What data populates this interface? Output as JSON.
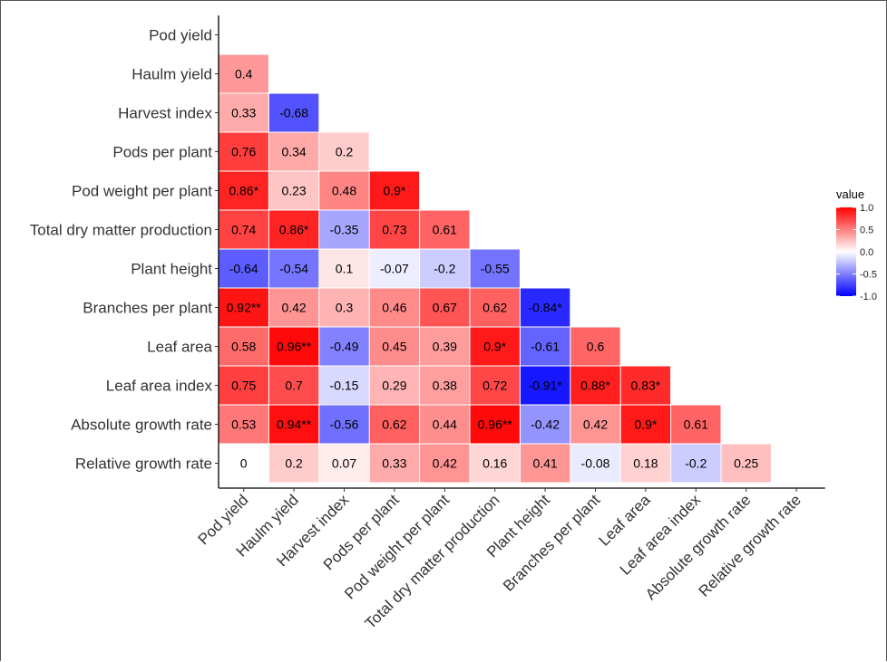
{
  "chart_data": {
    "type": "heatmap",
    "variables": [
      "Pod yield",
      "Haulm yield",
      "Harvest index",
      "Pods per plant",
      "Pod weight per plant",
      "Total dry matter production",
      "Plant height",
      "Branches per plant",
      "Leaf area",
      "Leaf area index",
      "Absolute growth rate",
      "Relative growth rate"
    ],
    "matrix": [
      [],
      [
        0.4
      ],
      [
        0.33,
        -0.68
      ],
      [
        0.76,
        0.34,
        0.2
      ],
      [
        0.86,
        0.23,
        0.48,
        0.9
      ],
      [
        0.74,
        0.86,
        -0.35,
        0.73,
        0.61
      ],
      [
        -0.64,
        -0.54,
        0.1,
        -0.07,
        -0.2,
        -0.55
      ],
      [
        0.92,
        0.42,
        0.3,
        0.46,
        0.67,
        0.62,
        -0.84
      ],
      [
        0.58,
        0.96,
        -0.49,
        0.45,
        0.39,
        0.9,
        -0.61,
        0.6
      ],
      [
        0.75,
        0.7,
        -0.15,
        0.29,
        0.38,
        0.72,
        -0.91,
        0.88,
        0.83
      ],
      [
        0.53,
        0.94,
        -0.56,
        0.62,
        0.44,
        0.96,
        -0.42,
        0.42,
        0.9,
        0.61
      ],
      [
        0,
        0.2,
        0.07,
        0.33,
        0.42,
        0.16,
        0.41,
        -0.08,
        0.18,
        -0.2,
        0.25
      ]
    ],
    "labels": [
      [],
      [
        "0.4"
      ],
      [
        "0.33",
        "-0.68"
      ],
      [
        "0.76",
        "0.34",
        "0.2"
      ],
      [
        "0.86*",
        "0.23",
        "0.48",
        "0.9*"
      ],
      [
        "0.74",
        "0.86*",
        "-0.35",
        "0.73",
        "0.61"
      ],
      [
        "-0.64",
        "-0.54",
        "0.1",
        "-0.07",
        "-0.2",
        "-0.55"
      ],
      [
        "0.92**",
        "0.42",
        "0.3",
        "0.46",
        "0.67",
        "0.62",
        "-0.84*"
      ],
      [
        "0.58",
        "0.96**",
        "-0.49",
        "0.45",
        "0.39",
        "0.9*",
        "-0.61",
        "0.6"
      ],
      [
        "0.75",
        "0.7",
        "-0.15",
        "0.29",
        "0.38",
        "0.72",
        "-0.91*",
        "0.88*",
        "0.83*"
      ],
      [
        "0.53",
        "0.94**",
        "-0.56",
        "0.62",
        "0.44",
        "0.96**",
        "-0.42",
        "0.42",
        "0.9*",
        "0.61"
      ],
      [
        "0",
        "0.2",
        "0.07",
        "0.33",
        "0.42",
        "0.16",
        "0.41",
        "-0.08",
        "0.18",
        "-0.2",
        "0.25"
      ]
    ],
    "legend": {
      "title": "value",
      "ticks": [
        1.0,
        0.5,
        0.0,
        -0.5,
        -1.0
      ],
      "tick_labels": [
        "1.0",
        "0.5",
        "0.0",
        "-0.5",
        "-1.0"
      ],
      "placement": "right"
    },
    "colors": {
      "low": "#0000ff",
      "mid": "#ffffff",
      "high": "#ff0000"
    },
    "value_range": [
      -1,
      1
    ]
  }
}
